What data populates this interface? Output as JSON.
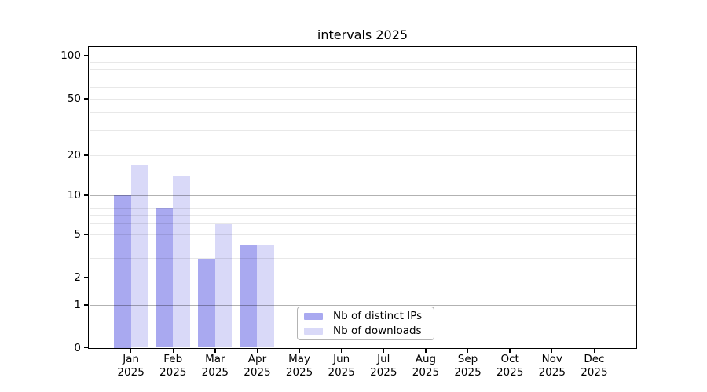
{
  "title": "intervals 2025",
  "legend": {
    "items": [
      {
        "label": "Nb of distinct IPs",
        "color": "#a9a9f0"
      },
      {
        "label": "Nb of downloads",
        "color": "#d9d9f8"
      }
    ]
  },
  "chart_data": {
    "type": "bar",
    "title": "intervals 2025",
    "categories": [
      "Jan",
      "Feb",
      "Mar",
      "Apr",
      "May",
      "Jun",
      "Jul",
      "Aug",
      "Sep",
      "Oct",
      "Nov",
      "Dec"
    ],
    "category_year": "2025",
    "series": [
      {
        "name": "Nb of distinct IPs",
        "color": "#a9a9f0",
        "values": [
          10,
          8,
          3,
          4,
          null,
          null,
          null,
          null,
          null,
          null,
          null,
          null
        ]
      },
      {
        "name": "Nb of downloads",
        "color": "#d9d9f8",
        "values": [
          17,
          14,
          6,
          4,
          null,
          null,
          null,
          null,
          null,
          null,
          null,
          null
        ]
      }
    ],
    "yscale": "log-with-zero-baseline",
    "ytick_labels": [
      "0",
      "1",
      "2",
      "5",
      "10",
      "20",
      "50",
      "100"
    ],
    "ytick_values": [
      0,
      1,
      2,
      5,
      10,
      20,
      50,
      100
    ],
    "ylim": [
      0,
      110
    ],
    "xlabel": "",
    "ylabel": "",
    "grid": true,
    "legend_position": "lower-center"
  }
}
